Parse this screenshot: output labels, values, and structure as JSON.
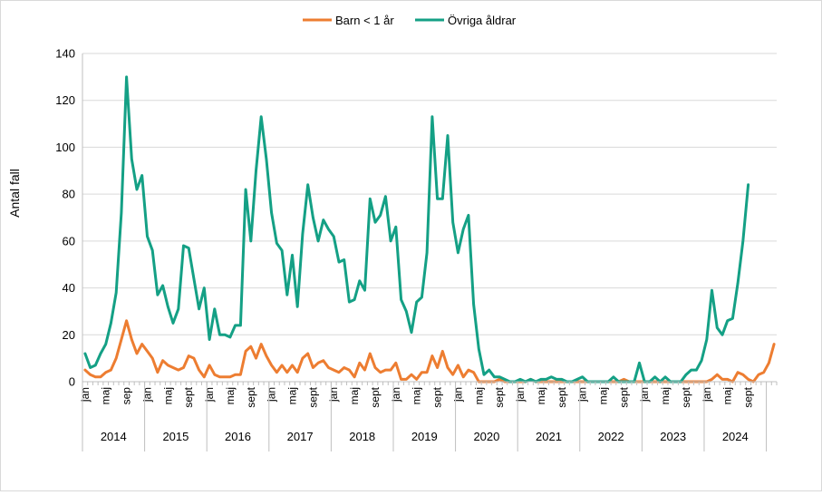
{
  "chart_data": {
    "type": "line",
    "title": "",
    "xlabel": "",
    "ylabel": "Antal fall",
    "ylim": [
      0,
      140
    ],
    "yticks": [
      0,
      20,
      40,
      60,
      80,
      100,
      120,
      140
    ],
    "legend_position": "top-center",
    "grid": true,
    "month_tick_labels": [
      "jan",
      "maj",
      "sep",
      "jan",
      "maj",
      "sept",
      "jan",
      "maj",
      "sept",
      "jan",
      "maj",
      "sept",
      "jan",
      "maj",
      "sept",
      "jan",
      "maj",
      "sept",
      "jan",
      "maj",
      "sept",
      "jan",
      "maj",
      "sept",
      "jan",
      "maj",
      "sept",
      "jan",
      "maj",
      "sept",
      "jan",
      "maj",
      "sept"
    ],
    "years": [
      "2014",
      "2015",
      "2016",
      "2017",
      "2018",
      "2019",
      "2020",
      "2021",
      "2022",
      "2023",
      "2024"
    ],
    "series": [
      {
        "name": "Barn < 1 år",
        "color": "#ED7D31",
        "values": [
          5,
          3,
          2,
          2,
          4,
          5,
          10,
          18,
          26,
          18,
          12,
          16,
          13,
          10,
          4,
          9,
          7,
          6,
          5,
          6,
          11,
          10,
          5,
          2,
          7,
          3,
          2,
          2,
          2,
          3,
          3,
          13,
          15,
          10,
          16,
          11,
          7,
          4,
          7,
          4,
          7,
          4,
          10,
          12,
          6,
          8,
          9,
          6,
          5,
          4,
          6,
          5,
          2,
          8,
          5,
          12,
          6,
          4,
          5,
          5,
          8,
          1,
          1,
          3,
          1,
          4,
          4,
          11,
          6,
          13,
          6,
          3,
          7,
          2,
          5,
          4,
          0,
          0,
          0,
          0,
          1,
          0,
          0,
          0,
          0,
          0,
          1,
          0,
          0,
          0,
          0,
          0,
          0,
          0,
          0,
          0,
          0,
          0,
          0,
          0,
          0,
          0,
          0,
          0,
          1,
          0,
          0,
          0,
          0,
          0,
          0,
          0,
          0,
          0,
          0,
          0,
          0,
          0,
          0,
          0,
          0,
          1,
          3,
          1,
          1,
          0,
          4,
          3,
          1,
          0,
          3,
          4,
          8,
          16
        ]
      },
      {
        "name": "Övriga åldrar",
        "color": "#14A085",
        "values": [
          12,
          6,
          7,
          12,
          16,
          25,
          38,
          72,
          130,
          95,
          82,
          88,
          62,
          56,
          37,
          41,
          32,
          25,
          31,
          58,
          57,
          44,
          31,
          40,
          18,
          31,
          20,
          20,
          19,
          24,
          24,
          82,
          60,
          90,
          113,
          95,
          72,
          59,
          56,
          37,
          54,
          32,
          63,
          84,
          70,
          60,
          69,
          65,
          62,
          51,
          52,
          34,
          35,
          43,
          39,
          78,
          68,
          71,
          79,
          60,
          66,
          35,
          30,
          21,
          34,
          36,
          55,
          113,
          78,
          78,
          105,
          68,
          55,
          65,
          71,
          33,
          14,
          3,
          5,
          2,
          2,
          1,
          0,
          0,
          1,
          0,
          1,
          0,
          1,
          1,
          2,
          1,
          1,
          0,
          0,
          1,
          2,
          0,
          0,
          0,
          0,
          0,
          2,
          0,
          0,
          0,
          0,
          8,
          0,
          0,
          2,
          0,
          2,
          0,
          0,
          0,
          3,
          5,
          5,
          9,
          18,
          39,
          23,
          20,
          26,
          27,
          42,
          60,
          84
        ]
      }
    ]
  }
}
